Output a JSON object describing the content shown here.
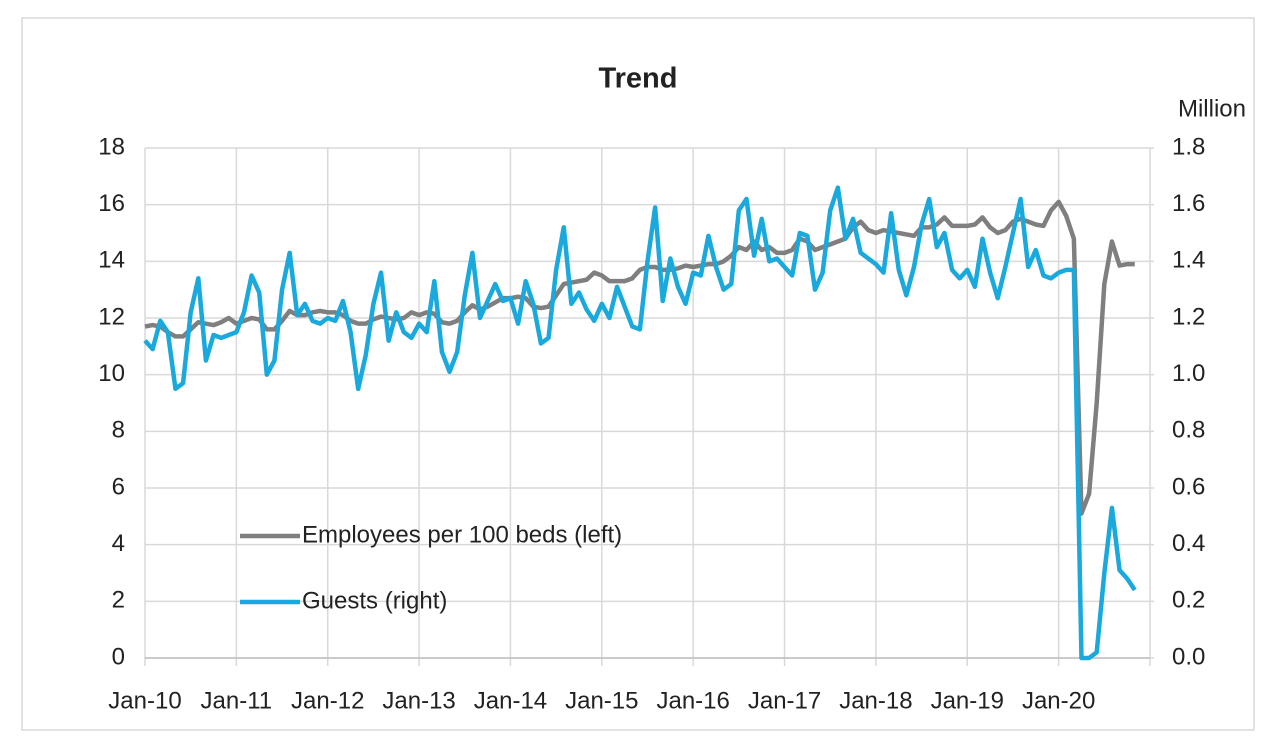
{
  "chart_data": {
    "type": "line",
    "title": "Trend",
    "y2_label": "Million",
    "legend_position": "lower left",
    "grid": true,
    "categories": [
      "Jan-10",
      null,
      null,
      null,
      null,
      null,
      null,
      null,
      null,
      null,
      null,
      null,
      "Jan-11",
      null,
      null,
      null,
      null,
      null,
      null,
      null,
      null,
      null,
      null,
      null,
      "Jan-12",
      null,
      null,
      null,
      null,
      null,
      null,
      null,
      null,
      null,
      null,
      null,
      "Jan-13",
      null,
      null,
      null,
      null,
      null,
      null,
      null,
      null,
      null,
      null,
      null,
      "Jan-14",
      null,
      null,
      null,
      null,
      null,
      null,
      null,
      null,
      null,
      null,
      null,
      "Jan-15",
      null,
      null,
      null,
      null,
      null,
      null,
      null,
      null,
      null,
      null,
      null,
      "Jan-16",
      null,
      null,
      null,
      null,
      null,
      null,
      null,
      null,
      null,
      null,
      null,
      "Jan-17",
      null,
      null,
      null,
      null,
      null,
      null,
      null,
      null,
      null,
      null,
      null,
      "Jan-18",
      null,
      null,
      null,
      null,
      null,
      null,
      null,
      null,
      null,
      null,
      null,
      "Jan-19",
      null,
      null,
      null,
      null,
      null,
      null,
      null,
      null,
      null,
      null,
      null,
      "Jan-20",
      null,
      null,
      null,
      null,
      null,
      null,
      null,
      null,
      null,
      null
    ],
    "ylim": [
      0,
      18
    ],
    "yticks": [
      0,
      2,
      4,
      6,
      8,
      10,
      12,
      14,
      16,
      18
    ],
    "y2lim": [
      0,
      1.8
    ],
    "y2ticks": [
      {
        "value": 0,
        "label": "0.0"
      },
      {
        "value": 0.2,
        "label": "0.2"
      },
      {
        "value": 0.4,
        "label": "0.4"
      },
      {
        "value": 0.6,
        "label": "0.6"
      },
      {
        "value": 0.8,
        "label": "0.8"
      },
      {
        "value": 1,
        "label": "1.0"
      },
      {
        "value": 1.2,
        "label": "1.2"
      },
      {
        "value": 1.4,
        "label": "1.4"
      },
      {
        "value": 1.6,
        "label": "1.6"
      },
      {
        "value": 1.8,
        "label": "1.8"
      }
    ],
    "series": [
      {
        "name": "Employees per 100 beds (left)",
        "color": "#7f7f7f",
        "axis": "y",
        "values": [
          11.7,
          11.75,
          11.7,
          11.5,
          11.35,
          11.35,
          11.6,
          11.85,
          11.8,
          11.75,
          11.85,
          12.0,
          11.8,
          11.9,
          12.0,
          11.95,
          11.6,
          11.6,
          11.9,
          12.25,
          12.1,
          12.1,
          12.2,
          12.25,
          12.2,
          12.2,
          12.1,
          11.9,
          11.8,
          11.8,
          11.95,
          12.05,
          12.0,
          11.95,
          12.0,
          12.2,
          12.1,
          12.2,
          12.15,
          11.85,
          11.8,
          11.9,
          12.2,
          12.45,
          12.3,
          12.4,
          12.55,
          12.7,
          12.7,
          12.75,
          12.7,
          12.4,
          12.35,
          12.4,
          12.8,
          13.2,
          13.25,
          13.3,
          13.35,
          13.6,
          13.5,
          13.3,
          13.3,
          13.3,
          13.4,
          13.7,
          13.8,
          13.8,
          13.7,
          13.7,
          13.75,
          13.85,
          13.8,
          13.85,
          13.9,
          13.9,
          14.0,
          14.2,
          14.5,
          14.4,
          14.7,
          14.4,
          14.5,
          14.3,
          14.3,
          14.4,
          14.8,
          14.7,
          14.4,
          14.5,
          14.6,
          14.7,
          14.8,
          15.2,
          15.4,
          15.1,
          15.0,
          15.1,
          15.05,
          15.0,
          14.95,
          14.9,
          15.2,
          15.2,
          15.3,
          15.55,
          15.25,
          15.25,
          15.25,
          15.3,
          15.55,
          15.2,
          15.0,
          15.1,
          15.4,
          15.5,
          15.4,
          15.3,
          15.25,
          15.8,
          16.1,
          15.6,
          14.8,
          5.1,
          5.8,
          9.0,
          13.2,
          14.7,
          13.85,
          13.9,
          13.9
        ]
      },
      {
        "name": "Guests (right)",
        "color": "#1aa9dd",
        "axis": "y2",
        "values": [
          1.12,
          1.09,
          1.19,
          1.15,
          0.95,
          0.97,
          1.22,
          1.34,
          1.05,
          1.14,
          1.13,
          1.14,
          1.15,
          1.22,
          1.35,
          1.29,
          1.0,
          1.05,
          1.3,
          1.43,
          1.21,
          1.25,
          1.19,
          1.18,
          1.2,
          1.19,
          1.26,
          1.15,
          0.95,
          1.07,
          1.25,
          1.36,
          1.12,
          1.22,
          1.15,
          1.13,
          1.18,
          1.15,
          1.33,
          1.08,
          1.01,
          1.08,
          1.28,
          1.43,
          1.2,
          1.26,
          1.32,
          1.26,
          1.27,
          1.18,
          1.33,
          1.25,
          1.11,
          1.13,
          1.37,
          1.52,
          1.25,
          1.29,
          1.23,
          1.19,
          1.25,
          1.2,
          1.31,
          1.24,
          1.17,
          1.16,
          1.4,
          1.59,
          1.26,
          1.41,
          1.31,
          1.25,
          1.36,
          1.35,
          1.49,
          1.38,
          1.3,
          1.32,
          1.58,
          1.62,
          1.42,
          1.55,
          1.4,
          1.41,
          1.38,
          1.35,
          1.5,
          1.49,
          1.3,
          1.36,
          1.58,
          1.66,
          1.48,
          1.55,
          1.43,
          1.41,
          1.39,
          1.36,
          1.57,
          1.37,
          1.28,
          1.38,
          1.53,
          1.62,
          1.45,
          1.5,
          1.37,
          1.34,
          1.37,
          1.31,
          1.48,
          1.36,
          1.27,
          1.38,
          1.5,
          1.62,
          1.38,
          1.44,
          1.35,
          1.34,
          1.36,
          1.37,
          1.37,
          0.0,
          0.0,
          0.02,
          0.3,
          0.53,
          0.31,
          0.28,
          0.24
        ]
      }
    ]
  }
}
